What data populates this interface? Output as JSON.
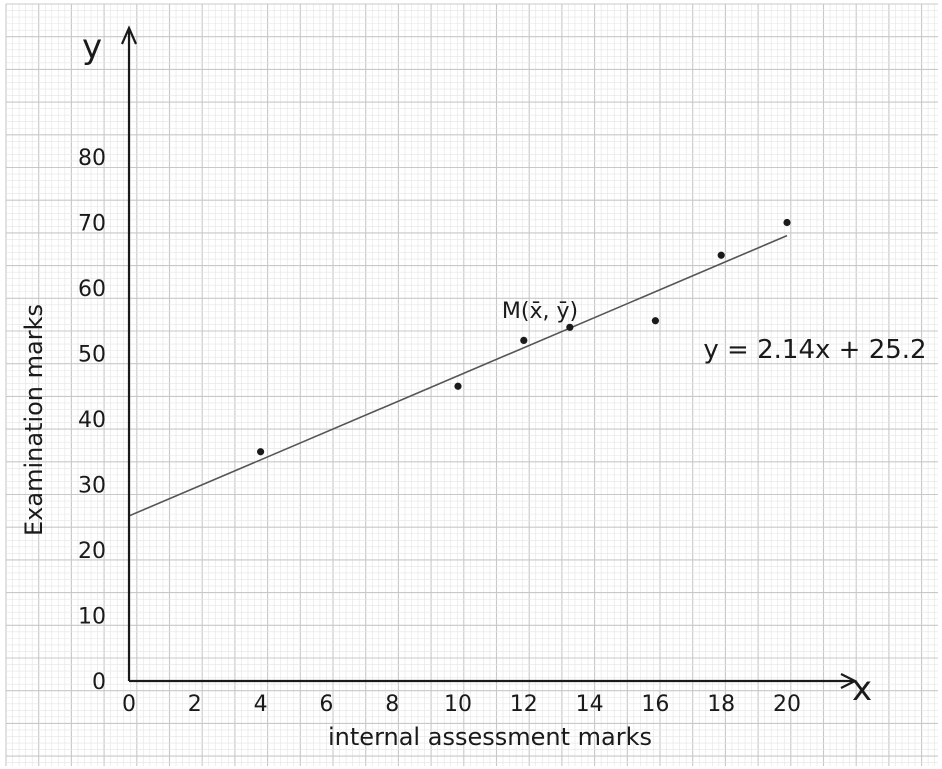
{
  "chart_data": {
    "type": "scatter",
    "xlabel": "internal assessment marks",
    "ylabel": "Examination marks",
    "x_axis_symbol": "x",
    "y_axis_symbol": "y",
    "xlim": [
      0,
      22
    ],
    "ylim": [
      0,
      90
    ],
    "x_ticks": [
      0,
      2,
      4,
      6,
      8,
      10,
      12,
      14,
      16,
      18,
      20
    ],
    "y_ticks": [
      0,
      10,
      20,
      30,
      40,
      50,
      60,
      70,
      80
    ],
    "points": [
      {
        "x": 4,
        "y": 35
      },
      {
        "x": 10,
        "y": 45
      },
      {
        "x": 12,
        "y": 52
      },
      {
        "x": 13.4,
        "y": 54
      },
      {
        "x": 16,
        "y": 55
      },
      {
        "x": 18,
        "y": 65
      },
      {
        "x": 20,
        "y": 70
      }
    ],
    "regression_line": {
      "slope": 2.14,
      "intercept": 25.2,
      "x_range": [
        0,
        20
      ]
    },
    "mean_point": {
      "x": 13.4,
      "y": 54,
      "label": "M(x̄, ȳ)"
    },
    "equation_label": "y = 2.14x + 25.2",
    "grid": true,
    "colors": {
      "ink": "#1a1a1a",
      "grid_minor": "#e4e4e4",
      "grid_major": "#c8c8c8"
    }
  }
}
